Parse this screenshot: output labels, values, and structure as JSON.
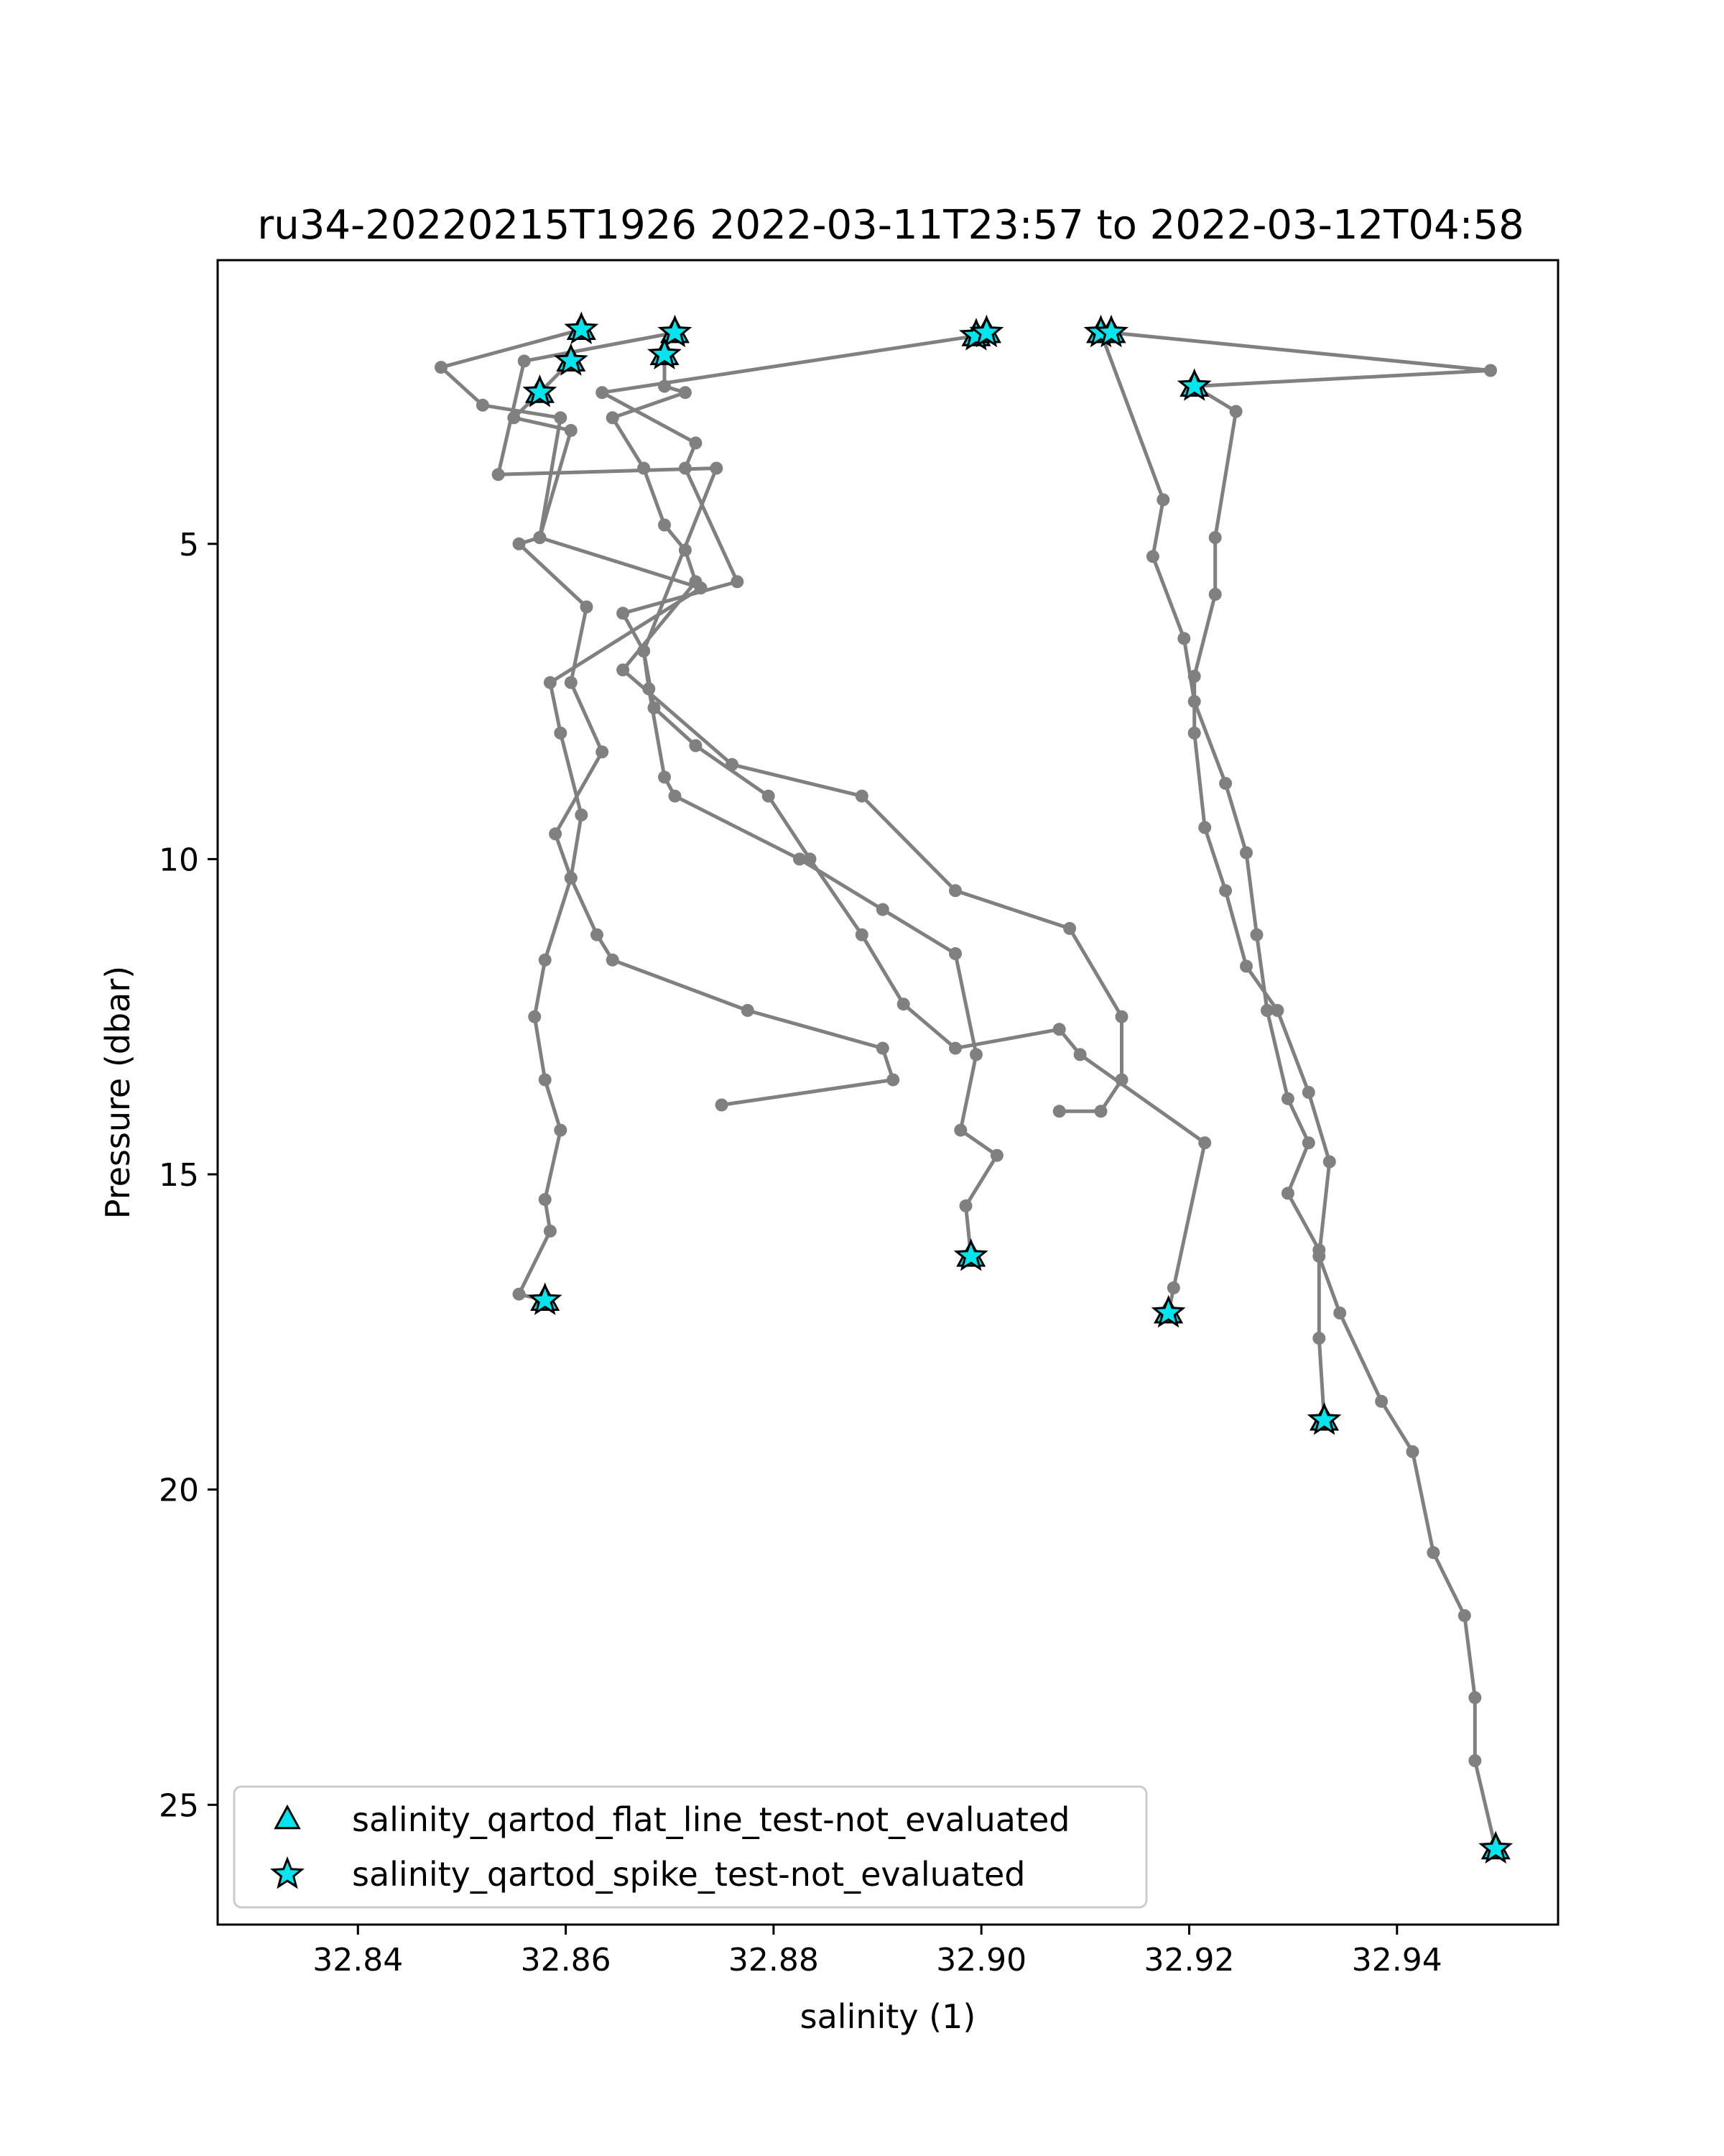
{
  "chart_data": {
    "type": "line",
    "title": "ru34-20220215T1926 2022-03-11T23:57 to 2022-03-12T04:58",
    "xlabel": "salinity (1)",
    "ylabel": "Pressure (dbar)",
    "xlim": [
      32.8265,
      32.9555
    ],
    "ylim": [
      26.9,
      0.5
    ],
    "y_inverted": true,
    "x_ticks": [
      "32.84",
      "32.86",
      "32.88",
      "32.90",
      "32.92",
      "32.94"
    ],
    "y_ticks": [
      "5",
      "10",
      "15",
      "20",
      "25"
    ],
    "grid": false,
    "legend_placement": "lower-left",
    "line_color": "#808080",
    "marker_color": "#00e5ee",
    "series": [
      {
        "points": [
          [
            32.8615,
            1.6
          ],
          [
            32.848,
            2.2
          ],
          [
            32.852,
            2.8
          ],
          [
            32.8595,
            3.0
          ],
          [
            32.8575,
            4.9
          ],
          [
            32.873,
            5.7
          ],
          [
            32.8585,
            7.2
          ],
          [
            32.8595,
            8.0
          ],
          [
            32.8615,
            9.3
          ],
          [
            32.8605,
            10.3
          ],
          [
            32.858,
            11.6
          ],
          [
            32.857,
            12.5
          ],
          [
            32.858,
            13.5
          ],
          [
            32.8595,
            14.3
          ],
          [
            32.858,
            15.4
          ],
          [
            32.8585,
            15.9
          ],
          [
            32.8555,
            16.9
          ],
          [
            32.858,
            17.0
          ]
        ]
      },
      {
        "points": [
          [
            32.8705,
            1.65
          ],
          [
            32.856,
            2.1
          ],
          [
            32.8535,
            3.9
          ],
          [
            32.8745,
            3.8
          ],
          [
            32.8675,
            6.7
          ],
          [
            32.868,
            7.3
          ],
          [
            32.8695,
            8.7
          ],
          [
            32.8705,
            9.0
          ],
          [
            32.8825,
            10.0
          ],
          [
            32.8905,
            10.8
          ],
          [
            32.8975,
            11.5
          ],
          [
            32.8995,
            13.1
          ],
          [
            32.898,
            14.3
          ],
          [
            32.9015,
            14.7
          ],
          [
            32.8985,
            15.5
          ],
          [
            32.899,
            16.3
          ]
        ]
      },
      {
        "points": [
          [
            32.8605,
            2.1
          ],
          [
            32.8575,
            2.6
          ],
          [
            32.855,
            3.0
          ],
          [
            32.8605,
            3.2
          ],
          [
            32.8575,
            4.9
          ],
          [
            32.8555,
            5.0
          ],
          [
            32.862,
            6.0
          ],
          [
            32.8605,
            7.2
          ],
          [
            32.8635,
            8.3
          ],
          [
            32.859,
            9.6
          ],
          [
            32.8605,
            10.3
          ],
          [
            32.863,
            11.2
          ],
          [
            32.8645,
            11.6
          ],
          [
            32.8775,
            12.4
          ],
          [
            32.8905,
            13.0
          ],
          [
            32.8915,
            13.5
          ],
          [
            32.875,
            13.9
          ]
        ]
      },
      {
        "points": [
          [
            32.8695,
            2.0
          ],
          [
            32.8695,
            2.5
          ],
          [
            32.8715,
            2.6
          ],
          [
            32.8645,
            3.0
          ],
          [
            32.8675,
            3.8
          ],
          [
            32.8695,
            4.7
          ],
          [
            32.8715,
            5.1
          ],
          [
            32.8725,
            5.6
          ],
          [
            32.8655,
            7.0
          ],
          [
            32.876,
            8.5
          ],
          [
            32.8885,
            9.0
          ],
          [
            32.8975,
            10.5
          ],
          [
            32.9085,
            11.1
          ],
          [
            32.9135,
            12.5
          ],
          [
            32.9135,
            13.5
          ],
          [
            32.9115,
            14.0
          ],
          [
            32.9075,
            14.0
          ]
        ]
      },
      {
        "points": [
          [
            32.8995,
            1.7
          ],
          [
            32.8635,
            2.6
          ],
          [
            32.8725,
            3.4
          ],
          [
            32.8715,
            3.8
          ],
          [
            32.8765,
            5.6
          ],
          [
            32.8655,
            6.1
          ],
          [
            32.8675,
            6.7
          ],
          [
            32.8685,
            7.6
          ],
          [
            32.8725,
            8.2
          ],
          [
            32.8795,
            9.0
          ],
          [
            32.8835,
            10.0
          ],
          [
            32.8885,
            11.2
          ],
          [
            32.8925,
            12.3
          ],
          [
            32.8975,
            13.0
          ],
          [
            32.9075,
            12.7
          ],
          [
            32.9095,
            13.1
          ],
          [
            32.9215,
            14.5
          ],
          [
            32.9185,
            16.8
          ],
          [
            32.918,
            17.2
          ]
        ]
      },
      {
        "points": [
          [
            32.9115,
            1.65
          ],
          [
            32.9175,
            4.3
          ],
          [
            32.9165,
            5.2
          ],
          [
            32.9195,
            6.5
          ],
          [
            32.9205,
            7.5
          ],
          [
            32.9235,
            8.8
          ],
          [
            32.9255,
            9.9
          ],
          [
            32.9265,
            11.2
          ],
          [
            32.9275,
            12.4
          ],
          [
            32.9295,
            13.8
          ],
          [
            32.9315,
            14.5
          ],
          [
            32.9295,
            15.3
          ],
          [
            32.9325,
            16.2
          ],
          [
            32.9325,
            17.6
          ],
          [
            32.933,
            18.9
          ]
        ]
      },
      {
        "points": [
          [
            32.9125,
            1.65
          ],
          [
            32.949,
            2.25
          ],
          [
            32.9205,
            2.5
          ],
          [
            32.9245,
            2.9
          ],
          [
            32.9225,
            4.9
          ],
          [
            32.9225,
            5.8
          ],
          [
            32.9205,
            7.1
          ],
          [
            32.9205,
            8.0
          ],
          [
            32.9215,
            9.5
          ],
          [
            32.9235,
            10.5
          ],
          [
            32.9255,
            11.7
          ],
          [
            32.9285,
            12.4
          ],
          [
            32.9315,
            13.7
          ],
          [
            32.9335,
            14.8
          ],
          [
            32.9325,
            16.3
          ],
          [
            32.9345,
            17.2
          ],
          [
            32.9385,
            18.6
          ],
          [
            32.9415,
            19.4
          ],
          [
            32.9435,
            21.0
          ],
          [
            32.9465,
            22.0
          ],
          [
            32.9475,
            23.3
          ],
          [
            32.9475,
            24.3
          ],
          [
            32.9495,
            25.7
          ]
        ]
      }
    ],
    "legend": [
      {
        "marker": "triangle",
        "label": "salinity_qartod_flat_line_test-not_evaluated"
      },
      {
        "marker": "star",
        "label": "salinity_qartod_spike_test-not_evaluated"
      }
    ],
    "flat_line_points": [
      [
        32.8615,
        1.6
      ],
      [
        32.8605,
        2.1
      ],
      [
        32.8575,
        2.6
      ],
      [
        32.8705,
        1.65
      ],
      [
        32.8695,
        2.0
      ],
      [
        32.8995,
        1.7
      ],
      [
        32.9005,
        1.65
      ],
      [
        32.9115,
        1.65
      ],
      [
        32.9125,
        1.65
      ],
      [
        32.9205,
        2.5
      ],
      [
        32.858,
        17.0
      ],
      [
        32.899,
        16.3
      ],
      [
        32.918,
        17.2
      ],
      [
        32.933,
        18.9
      ],
      [
        32.9495,
        25.7
      ]
    ],
    "spike_points": [
      [
        32.8615,
        1.6
      ],
      [
        32.8605,
        2.1
      ],
      [
        32.8575,
        2.6
      ],
      [
        32.8705,
        1.65
      ],
      [
        32.8695,
        2.0
      ],
      [
        32.8995,
        1.7
      ],
      [
        32.9005,
        1.65
      ],
      [
        32.9115,
        1.65
      ],
      [
        32.9125,
        1.65
      ],
      [
        32.9205,
        2.5
      ],
      [
        32.858,
        17.0
      ],
      [
        32.899,
        16.3
      ],
      [
        32.918,
        17.2
      ],
      [
        32.933,
        18.9
      ],
      [
        32.9495,
        25.7
      ]
    ]
  }
}
